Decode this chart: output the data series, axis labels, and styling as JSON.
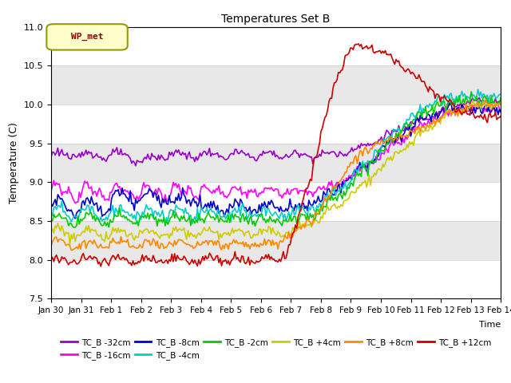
{
  "title": "Temperatures Set B",
  "xlabel": "Time",
  "ylabel": "Temperature (C)",
  "ylim": [
    7.5,
    11.0
  ],
  "series_order": [
    "TC_B -32cm",
    "TC_B -16cm",
    "TC_B -8cm",
    "TC_B -4cm",
    "TC_B -2cm",
    "TC_B +4cm",
    "TC_B +8cm",
    "TC_B +12cm"
  ],
  "series": {
    "TC_B -32cm": {
      "color": "#9900cc",
      "lw": 1.2
    },
    "TC_B -16cm": {
      "color": "#ff00ff",
      "lw": 1.2
    },
    "TC_B -8cm": {
      "color": "#0000cc",
      "lw": 1.2
    },
    "TC_B -4cm": {
      "color": "#00cccc",
      "lw": 1.2
    },
    "TC_B -2cm": {
      "color": "#00cc00",
      "lw": 1.2
    },
    "TC_B +4cm": {
      "color": "#cccc00",
      "lw": 1.2
    },
    "TC_B +8cm": {
      "color": "#ff8800",
      "lw": 1.2
    },
    "TC_B +12cm": {
      "color": "#cc0000",
      "lw": 1.2
    }
  },
  "legend_label": "WP_met",
  "legend_box_facecolor": "#ffffcc",
  "legend_box_edgecolor": "#999900",
  "legend_text_color": "#880000",
  "n_points": 336,
  "days": [
    "Jan 30",
    "Jan 31",
    "Feb 1",
    "Feb 2",
    "Feb 3",
    "Feb 4",
    "Feb 5",
    "Feb 6",
    "Feb 7",
    "Feb 8",
    "Feb 9",
    "Feb 10",
    "Feb 11",
    "Feb 12",
    "Feb 13",
    "Feb 14"
  ],
  "figure_bg": "#ffffff",
  "axes_bg_bands": [
    "#ffffff",
    "#e8e8e8"
  ]
}
